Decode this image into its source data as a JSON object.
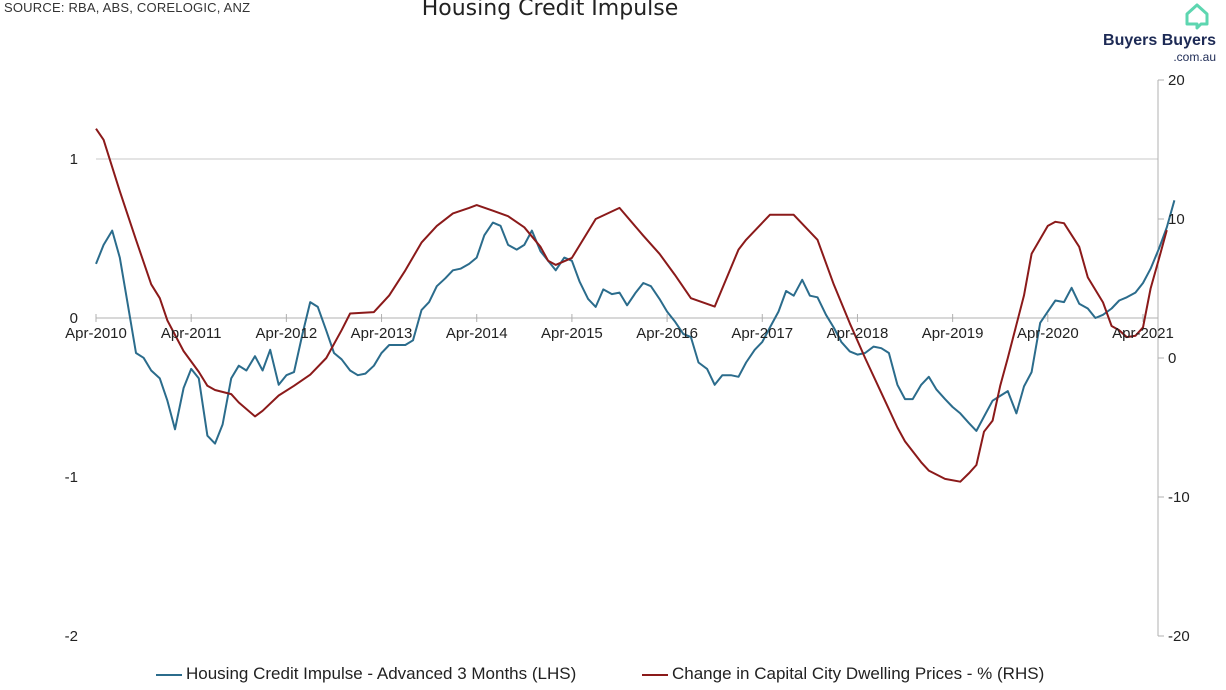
{
  "header": {
    "source": "SOURCE: RBA, ABS, CORELOGIC, ANZ",
    "title": "Housing Credit Impulse"
  },
  "logo": {
    "name": "Buyers Buyers",
    "domain": ".com.au",
    "colors": {
      "icon": "#5dd6b0",
      "text": "#1d2a55"
    }
  },
  "chart_data": {
    "type": "line",
    "title": "Housing Credit Impulse",
    "x_ticks": [
      "Apr-2010",
      "Apr-2011",
      "Apr-2012",
      "Apr-2013",
      "Apr-2014",
      "Apr-2015",
      "Apr-2016",
      "Apr-2017",
      "Apr-2018",
      "Apr-2019",
      "Apr-2020",
      "Apr-2021"
    ],
    "x_range": [
      2010.25,
      2021.5
    ],
    "left_axis": {
      "ticks": [
        "-2",
        "-1",
        "0",
        "1"
      ],
      "ylim": [
        -2,
        1
      ]
    },
    "right_axis": {
      "ticks": [
        "-20",
        "-10",
        "0",
        "10",
        "20"
      ],
      "ylim": [
        -20,
        20
      ]
    },
    "grid": "horizontal at left-axis 1",
    "legend_position": "bottom",
    "series": [
      {
        "name": "Housing Credit Impulse - Advanced 3 Months (LHS)",
        "axis": "left",
        "color": "#2b6c8c",
        "points": [
          [
            2010.25,
            0.34
          ],
          [
            2010.33,
            0.46
          ],
          [
            2010.42,
            0.55
          ],
          [
            2010.5,
            0.38
          ],
          [
            2010.58,
            0.1
          ],
          [
            2010.67,
            -0.22
          ],
          [
            2010.75,
            -0.25
          ],
          [
            2010.83,
            -0.33
          ],
          [
            2010.92,
            -0.38
          ],
          [
            2011.0,
            -0.52
          ],
          [
            2011.08,
            -0.7
          ],
          [
            2011.17,
            -0.44
          ],
          [
            2011.25,
            -0.32
          ],
          [
            2011.33,
            -0.38
          ],
          [
            2011.42,
            -0.74
          ],
          [
            2011.5,
            -0.79
          ],
          [
            2011.58,
            -0.67
          ],
          [
            2011.67,
            -0.38
          ],
          [
            2011.75,
            -0.3
          ],
          [
            2011.83,
            -0.33
          ],
          [
            2011.92,
            -0.24
          ],
          [
            2012.0,
            -0.33
          ],
          [
            2012.08,
            -0.2
          ],
          [
            2012.17,
            -0.42
          ],
          [
            2012.25,
            -0.36
          ],
          [
            2012.33,
            -0.34
          ],
          [
            2012.42,
            -0.1
          ],
          [
            2012.5,
            0.1
          ],
          [
            2012.58,
            0.07
          ],
          [
            2012.67,
            -0.08
          ],
          [
            2012.75,
            -0.22
          ],
          [
            2012.83,
            -0.26
          ],
          [
            2012.92,
            -0.33
          ],
          [
            2013.0,
            -0.36
          ],
          [
            2013.08,
            -0.35
          ],
          [
            2013.17,
            -0.3
          ],
          [
            2013.25,
            -0.22
          ],
          [
            2013.33,
            -0.17
          ],
          [
            2013.42,
            -0.17
          ],
          [
            2013.5,
            -0.17
          ],
          [
            2013.58,
            -0.14
          ],
          [
            2013.67,
            0.05
          ],
          [
            2013.75,
            0.1
          ],
          [
            2013.83,
            0.2
          ],
          [
            2013.92,
            0.25
          ],
          [
            2014.0,
            0.3
          ],
          [
            2014.08,
            0.31
          ],
          [
            2014.17,
            0.34
          ],
          [
            2014.25,
            0.38
          ],
          [
            2014.33,
            0.52
          ],
          [
            2014.42,
            0.6
          ],
          [
            2014.5,
            0.58
          ],
          [
            2014.58,
            0.46
          ],
          [
            2014.67,
            0.43
          ],
          [
            2014.75,
            0.46
          ],
          [
            2014.83,
            0.55
          ],
          [
            2014.92,
            0.42
          ],
          [
            2015.0,
            0.36
          ],
          [
            2015.08,
            0.3
          ],
          [
            2015.17,
            0.38
          ],
          [
            2015.25,
            0.36
          ],
          [
            2015.33,
            0.23
          ],
          [
            2015.42,
            0.12
          ],
          [
            2015.5,
            0.07
          ],
          [
            2015.58,
            0.18
          ],
          [
            2015.67,
            0.15
          ],
          [
            2015.75,
            0.16
          ],
          [
            2015.83,
            0.08
          ],
          [
            2015.92,
            0.16
          ],
          [
            2016.0,
            0.22
          ],
          [
            2016.08,
            0.2
          ],
          [
            2016.17,
            0.12
          ],
          [
            2016.25,
            0.04
          ],
          [
            2016.33,
            -0.02
          ],
          [
            2016.42,
            -0.1
          ],
          [
            2016.5,
            -0.12
          ],
          [
            2016.58,
            -0.28
          ],
          [
            2016.67,
            -0.32
          ],
          [
            2016.75,
            -0.42
          ],
          [
            2016.83,
            -0.36
          ],
          [
            2016.92,
            -0.36
          ],
          [
            2017.0,
            -0.37
          ],
          [
            2017.08,
            -0.28
          ],
          [
            2017.17,
            -0.2
          ],
          [
            2017.25,
            -0.15
          ],
          [
            2017.33,
            -0.06
          ],
          [
            2017.42,
            0.04
          ],
          [
            2017.5,
            0.17
          ],
          [
            2017.58,
            0.14
          ],
          [
            2017.67,
            0.24
          ],
          [
            2017.75,
            0.14
          ],
          [
            2017.83,
            0.13
          ],
          [
            2017.92,
            0.02
          ],
          [
            2018.0,
            -0.06
          ],
          [
            2018.08,
            -0.15
          ],
          [
            2018.17,
            -0.21
          ],
          [
            2018.25,
            -0.23
          ],
          [
            2018.33,
            -0.22
          ],
          [
            2018.42,
            -0.18
          ],
          [
            2018.5,
            -0.19
          ],
          [
            2018.58,
            -0.22
          ],
          [
            2018.67,
            -0.42
          ],
          [
            2018.75,
            -0.51
          ],
          [
            2018.83,
            -0.51
          ],
          [
            2018.92,
            -0.42
          ],
          [
            2019.0,
            -0.37
          ],
          [
            2019.08,
            -0.45
          ],
          [
            2019.17,
            -0.51
          ],
          [
            2019.25,
            -0.56
          ],
          [
            2019.33,
            -0.6
          ],
          [
            2019.42,
            -0.66
          ],
          [
            2019.5,
            -0.71
          ],
          [
            2019.58,
            -0.62
          ],
          [
            2019.67,
            -0.52
          ],
          [
            2019.75,
            -0.49
          ],
          [
            2019.83,
            -0.46
          ],
          [
            2019.92,
            -0.6
          ],
          [
            2020.0,
            -0.43
          ],
          [
            2020.08,
            -0.34
          ],
          [
            2020.17,
            -0.03
          ],
          [
            2020.25,
            0.04
          ],
          [
            2020.33,
            0.11
          ],
          [
            2020.42,
            0.1
          ],
          [
            2020.5,
            0.19
          ],
          [
            2020.58,
            0.09
          ],
          [
            2020.67,
            0.06
          ],
          [
            2020.75,
            0.0
          ],
          [
            2020.83,
            0.02
          ],
          [
            2020.92,
            0.06
          ],
          [
            2021.0,
            0.11
          ],
          [
            2021.08,
            0.13
          ],
          [
            2021.17,
            0.16
          ],
          [
            2021.25,
            0.22
          ],
          [
            2021.33,
            0.31
          ],
          [
            2021.42,
            0.44
          ],
          [
            2021.5,
            0.57
          ],
          [
            2021.58,
            0.74
          ]
        ]
      },
      {
        "name": "Change in Capital City Dwelling Prices - % (RHS)",
        "axis": "right",
        "color": "#8b1a1a",
        "points": [
          [
            2010.25,
            16.5
          ],
          [
            2010.33,
            15.7
          ],
          [
            2010.5,
            12.0
          ],
          [
            2010.67,
            8.5
          ],
          [
            2010.83,
            5.3
          ],
          [
            2010.92,
            4.3
          ],
          [
            2011.0,
            2.7
          ],
          [
            2011.17,
            0.5
          ],
          [
            2011.33,
            -1.0
          ],
          [
            2011.42,
            -2.0
          ],
          [
            2011.5,
            -2.3
          ],
          [
            2011.67,
            -2.6
          ],
          [
            2011.75,
            -3.2
          ],
          [
            2011.92,
            -4.2
          ],
          [
            2012.0,
            -3.8
          ],
          [
            2012.17,
            -2.7
          ],
          [
            2012.33,
            -2.0
          ],
          [
            2012.5,
            -1.2
          ],
          [
            2012.67,
            0.0
          ],
          [
            2012.83,
            2.0
          ],
          [
            2012.92,
            3.2
          ],
          [
            2013.17,
            3.3
          ],
          [
            2013.33,
            4.5
          ],
          [
            2013.5,
            6.3
          ],
          [
            2013.67,
            8.3
          ],
          [
            2013.83,
            9.5
          ],
          [
            2014.0,
            10.4
          ],
          [
            2014.17,
            10.8
          ],
          [
            2014.25,
            11.0
          ],
          [
            2014.42,
            10.6
          ],
          [
            2014.58,
            10.2
          ],
          [
            2014.75,
            9.4
          ],
          [
            2014.92,
            8.0
          ],
          [
            2015.0,
            7.0
          ],
          [
            2015.08,
            6.7
          ],
          [
            2015.25,
            7.2
          ],
          [
            2015.5,
            10.0
          ],
          [
            2015.75,
            10.8
          ],
          [
            2016.0,
            8.8
          ],
          [
            2016.17,
            7.5
          ],
          [
            2016.33,
            6.0
          ],
          [
            2016.5,
            4.3
          ],
          [
            2016.75,
            3.7
          ],
          [
            2017.0,
            7.8
          ],
          [
            2017.08,
            8.5
          ],
          [
            2017.33,
            10.3
          ],
          [
            2017.58,
            10.3
          ],
          [
            2017.83,
            8.5
          ],
          [
            2018.0,
            5.3
          ],
          [
            2018.17,
            2.5
          ],
          [
            2018.33,
            0.0
          ],
          [
            2018.5,
            -2.5
          ],
          [
            2018.67,
            -5.0
          ],
          [
            2018.75,
            -6.0
          ],
          [
            2018.92,
            -7.5
          ],
          [
            2019.0,
            -8.1
          ],
          [
            2019.17,
            -8.7
          ],
          [
            2019.33,
            -8.9
          ],
          [
            2019.42,
            -8.3
          ],
          [
            2019.5,
            -7.7
          ],
          [
            2019.58,
            -5.3
          ],
          [
            2019.67,
            -4.5
          ],
          [
            2019.75,
            -2.0
          ],
          [
            2019.83,
            0.0
          ],
          [
            2020.0,
            4.5
          ],
          [
            2020.08,
            7.5
          ],
          [
            2020.25,
            9.5
          ],
          [
            2020.33,
            9.8
          ],
          [
            2020.42,
            9.7
          ],
          [
            2020.58,
            8.0
          ],
          [
            2020.67,
            5.8
          ],
          [
            2020.83,
            4.0
          ],
          [
            2020.92,
            2.3
          ],
          [
            2021.0,
            2.0
          ],
          [
            2021.08,
            1.5
          ],
          [
            2021.17,
            1.6
          ],
          [
            2021.25,
            2.2
          ],
          [
            2021.33,
            5.0
          ],
          [
            2021.42,
            7.2
          ],
          [
            2021.5,
            9.2
          ]
        ]
      }
    ]
  }
}
